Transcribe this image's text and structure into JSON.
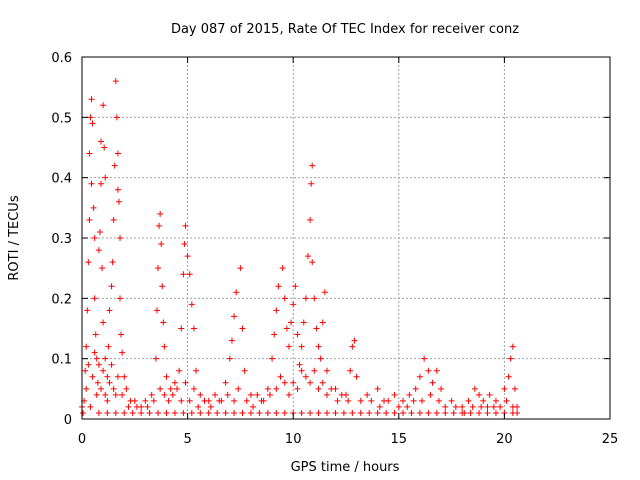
{
  "chart_data": {
    "type": "scatter",
    "title": "Day 087 of 2015, Rate Of TEC Index for receiver conz",
    "xlabel": "GPS time / hours",
    "ylabel": "ROTI / TECUs",
    "xlim": [
      0,
      25
    ],
    "ylim": [
      0,
      0.6
    ],
    "x_ticks": [
      "0",
      "5",
      "10",
      "15",
      "20",
      "25"
    ],
    "y_ticks": [
      "0",
      "0.1",
      "0.2",
      "0.3",
      "0.4",
      "0.5",
      "0.6"
    ],
    "grid": true,
    "marker": "plus",
    "color": "#ff0000",
    "points": [
      [
        0.0,
        0.02
      ],
      [
        0.1,
        0.03
      ],
      [
        0.15,
        0.08
      ],
      [
        0.2,
        0.12
      ],
      [
        0.25,
        0.18
      ],
      [
        0.3,
        0.26
      ],
      [
        0.35,
        0.33
      ],
      [
        0.35,
        0.44
      ],
      [
        0.4,
        0.5
      ],
      [
        0.45,
        0.53
      ],
      [
        0.5,
        0.49
      ],
      [
        0.45,
        0.39
      ],
      [
        0.55,
        0.35
      ],
      [
        0.6,
        0.3
      ],
      [
        0.6,
        0.2
      ],
      [
        0.65,
        0.14
      ],
      [
        0.7,
        0.1
      ],
      [
        0.75,
        0.06
      ],
      [
        0.8,
        0.28
      ],
      [
        0.85,
        0.31
      ],
      [
        0.9,
        0.39
      ],
      [
        0.9,
        0.46
      ],
      [
        1.0,
        0.52
      ],
      [
        1.05,
        0.45
      ],
      [
        1.1,
        0.4
      ],
      [
        0.95,
        0.25
      ],
      [
        1.0,
        0.16
      ],
      [
        1.1,
        0.1
      ],
      [
        1.2,
        0.07
      ],
      [
        1.25,
        0.12
      ],
      [
        1.3,
        0.18
      ],
      [
        1.4,
        0.22
      ],
      [
        1.45,
        0.26
      ],
      [
        1.5,
        0.33
      ],
      [
        1.55,
        0.42
      ],
      [
        1.6,
        0.56
      ],
      [
        1.65,
        0.5
      ],
      [
        1.7,
        0.44
      ],
      [
        1.7,
        0.38
      ],
      [
        1.75,
        0.36
      ],
      [
        1.8,
        0.3
      ],
      [
        1.8,
        0.2
      ],
      [
        1.85,
        0.14
      ],
      [
        1.9,
        0.11
      ],
      [
        2.0,
        0.07
      ],
      [
        2.1,
        0.05
      ],
      [
        2.3,
        0.03
      ],
      [
        2.6,
        0.02
      ],
      [
        3.0,
        0.03
      ],
      [
        3.3,
        0.04
      ],
      [
        3.5,
        0.1
      ],
      [
        3.55,
        0.18
      ],
      [
        3.6,
        0.25
      ],
      [
        3.65,
        0.32
      ],
      [
        3.7,
        0.34
      ],
      [
        3.75,
        0.29
      ],
      [
        3.8,
        0.22
      ],
      [
        3.85,
        0.16
      ],
      [
        3.9,
        0.12
      ],
      [
        4.0,
        0.07
      ],
      [
        4.2,
        0.05
      ],
      [
        4.4,
        0.06
      ],
      [
        4.6,
        0.08
      ],
      [
        4.7,
        0.15
      ],
      [
        4.8,
        0.24
      ],
      [
        4.85,
        0.29
      ],
      [
        4.9,
        0.32
      ],
      [
        5.0,
        0.27
      ],
      [
        5.1,
        0.24
      ],
      [
        5.2,
        0.19
      ],
      [
        5.3,
        0.15
      ],
      [
        5.4,
        0.08
      ],
      [
        5.6,
        0.04
      ],
      [
        6.0,
        0.03
      ],
      [
        6.5,
        0.03
      ],
      [
        6.8,
        0.06
      ],
      [
        7.0,
        0.1
      ],
      [
        7.1,
        0.13
      ],
      [
        7.2,
        0.17
      ],
      [
        7.3,
        0.21
      ],
      [
        7.5,
        0.25
      ],
      [
        7.6,
        0.15
      ],
      [
        7.7,
        0.08
      ],
      [
        8.0,
        0.04
      ],
      [
        8.5,
        0.03
      ],
      [
        8.8,
        0.05
      ],
      [
        9.0,
        0.1
      ],
      [
        9.1,
        0.14
      ],
      [
        9.2,
        0.18
      ],
      [
        9.3,
        0.22
      ],
      [
        9.5,
        0.25
      ],
      [
        9.6,
        0.2
      ],
      [
        9.7,
        0.15
      ],
      [
        9.8,
        0.12
      ],
      [
        9.9,
        0.16
      ],
      [
        10.0,
        0.19
      ],
      [
        10.1,
        0.22
      ],
      [
        10.2,
        0.14
      ],
      [
        10.3,
        0.09
      ],
      [
        10.4,
        0.12
      ],
      [
        10.5,
        0.16
      ],
      [
        10.6,
        0.2
      ],
      [
        10.7,
        0.27
      ],
      [
        10.8,
        0.33
      ],
      [
        10.85,
        0.39
      ],
      [
        10.9,
        0.42
      ],
      [
        10.9,
        0.26
      ],
      [
        11.0,
        0.2
      ],
      [
        11.1,
        0.15
      ],
      [
        11.2,
        0.12
      ],
      [
        11.3,
        0.1
      ],
      [
        11.4,
        0.16
      ],
      [
        11.5,
        0.21
      ],
      [
        11.6,
        0.08
      ],
      [
        12.0,
        0.05
      ],
      [
        12.5,
        0.04
      ],
      [
        12.7,
        0.08
      ],
      [
        12.8,
        0.12
      ],
      [
        12.9,
        0.13
      ],
      [
        13.0,
        0.07
      ],
      [
        13.5,
        0.04
      ],
      [
        14.0,
        0.05
      ],
      [
        14.3,
        0.03
      ],
      [
        14.8,
        0.04
      ],
      [
        15.2,
        0.03
      ],
      [
        15.5,
        0.04
      ],
      [
        15.8,
        0.05
      ],
      [
        16.0,
        0.07
      ],
      [
        16.2,
        0.1
      ],
      [
        16.4,
        0.08
      ],
      [
        16.6,
        0.06
      ],
      [
        16.8,
        0.08
      ],
      [
        17.0,
        0.05
      ],
      [
        17.5,
        0.03
      ],
      [
        18.0,
        0.02
      ],
      [
        18.3,
        0.03
      ],
      [
        18.6,
        0.05
      ],
      [
        18.8,
        0.04
      ],
      [
        19.0,
        0.03
      ],
      [
        19.3,
        0.04
      ],
      [
        19.6,
        0.03
      ],
      [
        20.0,
        0.05
      ],
      [
        20.2,
        0.07
      ],
      [
        20.3,
        0.1
      ],
      [
        20.4,
        0.12
      ],
      [
        20.5,
        0.05
      ],
      [
        20.6,
        0.02
      ],
      [
        0.2,
        0.05
      ],
      [
        0.3,
        0.09
      ],
      [
        0.5,
        0.07
      ],
      [
        0.6,
        0.11
      ],
      [
        0.7,
        0.04
      ],
      [
        0.8,
        0.09
      ],
      [
        0.9,
        0.05
      ],
      [
        1.0,
        0.08
      ],
      [
        1.1,
        0.04
      ],
      [
        1.2,
        0.03
      ],
      [
        1.3,
        0.06
      ],
      [
        1.4,
        0.09
      ],
      [
        1.5,
        0.05
      ],
      [
        1.6,
        0.04
      ],
      [
        1.7,
        0.07
      ],
      [
        1.9,
        0.04
      ],
      [
        2.2,
        0.02
      ],
      [
        2.5,
        0.03
      ],
      [
        2.8,
        0.02
      ],
      [
        3.1,
        0.02
      ],
      [
        3.4,
        0.03
      ],
      [
        3.7,
        0.05
      ],
      [
        3.9,
        0.04
      ],
      [
        4.1,
        0.03
      ],
      [
        4.3,
        0.04
      ],
      [
        4.5,
        0.05
      ],
      [
        4.7,
        0.03
      ],
      [
        4.9,
        0.06
      ],
      [
        5.1,
        0.03
      ],
      [
        5.3,
        0.05
      ],
      [
        5.5,
        0.02
      ],
      [
        5.8,
        0.03
      ],
      [
        6.1,
        0.02
      ],
      [
        6.3,
        0.04
      ],
      [
        6.6,
        0.03
      ],
      [
        6.9,
        0.04
      ],
      [
        7.2,
        0.03
      ],
      [
        7.4,
        0.05
      ],
      [
        7.8,
        0.03
      ],
      [
        8.1,
        0.02
      ],
      [
        8.3,
        0.04
      ],
      [
        8.6,
        0.03
      ],
      [
        8.9,
        0.04
      ],
      [
        9.2,
        0.05
      ],
      [
        9.4,
        0.07
      ],
      [
        9.6,
        0.06
      ],
      [
        9.8,
        0.04
      ],
      [
        10.0,
        0.06
      ],
      [
        10.2,
        0.05
      ],
      [
        10.4,
        0.08
      ],
      [
        10.6,
        0.07
      ],
      [
        10.8,
        0.06
      ],
      [
        11.0,
        0.08
      ],
      [
        11.2,
        0.05
      ],
      [
        11.4,
        0.06
      ],
      [
        11.6,
        0.04
      ],
      [
        11.8,
        0.05
      ],
      [
        12.1,
        0.03
      ],
      [
        12.3,
        0.04
      ],
      [
        12.6,
        0.03
      ],
      [
        13.2,
        0.03
      ],
      [
        13.7,
        0.03
      ],
      [
        14.1,
        0.02
      ],
      [
        14.5,
        0.03
      ],
      [
        15.0,
        0.02
      ],
      [
        15.4,
        0.02
      ],
      [
        15.7,
        0.03
      ],
      [
        16.1,
        0.03
      ],
      [
        16.5,
        0.04
      ],
      [
        16.9,
        0.03
      ],
      [
        17.2,
        0.02
      ],
      [
        17.7,
        0.02
      ],
      [
        18.1,
        0.01
      ],
      [
        18.5,
        0.02
      ],
      [
        18.9,
        0.02
      ],
      [
        19.2,
        0.02
      ],
      [
        19.5,
        0.02
      ],
      [
        19.8,
        0.02
      ],
      [
        20.1,
        0.03
      ],
      [
        20.4,
        0.02
      ],
      [
        0.05,
        0.01
      ],
      [
        0.4,
        0.02
      ],
      [
        0.8,
        0.01
      ],
      [
        1.2,
        0.01
      ],
      [
        1.6,
        0.01
      ],
      [
        2.0,
        0.01
      ],
      [
        2.4,
        0.01
      ],
      [
        2.8,
        0.01
      ],
      [
        3.2,
        0.01
      ],
      [
        3.6,
        0.01
      ],
      [
        4.0,
        0.01
      ],
      [
        4.4,
        0.01
      ],
      [
        4.8,
        0.01
      ],
      [
        5.2,
        0.01
      ],
      [
        5.6,
        0.01
      ],
      [
        6.0,
        0.01
      ],
      [
        6.4,
        0.01
      ],
      [
        6.8,
        0.01
      ],
      [
        7.2,
        0.01
      ],
      [
        7.6,
        0.01
      ],
      [
        8.0,
        0.01
      ],
      [
        8.4,
        0.01
      ],
      [
        8.8,
        0.01
      ],
      [
        9.2,
        0.01
      ],
      [
        9.6,
        0.01
      ],
      [
        10.0,
        0.01
      ],
      [
        10.4,
        0.01
      ],
      [
        10.8,
        0.01
      ],
      [
        11.2,
        0.01
      ],
      [
        11.6,
        0.01
      ],
      [
        12.0,
        0.01
      ],
      [
        12.4,
        0.01
      ],
      [
        12.8,
        0.01
      ],
      [
        13.2,
        0.01
      ],
      [
        13.6,
        0.01
      ],
      [
        14.0,
        0.01
      ],
      [
        14.4,
        0.01
      ],
      [
        14.8,
        0.01
      ],
      [
        15.2,
        0.01
      ],
      [
        15.6,
        0.01
      ],
      [
        16.0,
        0.01
      ],
      [
        16.4,
        0.01
      ],
      [
        16.8,
        0.01
      ],
      [
        17.2,
        0.01
      ],
      [
        17.6,
        0.01
      ],
      [
        18.0,
        0.01
      ],
      [
        18.4,
        0.01
      ],
      [
        18.8,
        0.01
      ],
      [
        19.2,
        0.01
      ],
      [
        19.6,
        0.01
      ],
      [
        20.0,
        0.01
      ],
      [
        20.4,
        0.01
      ],
      [
        20.6,
        0.01
      ]
    ]
  }
}
